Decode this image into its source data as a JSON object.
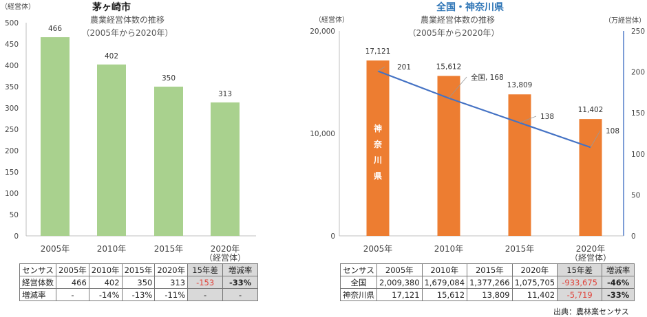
{
  "chart_data": [
    {
      "type": "bar",
      "title": "茅ヶ崎市",
      "subtitle": "農業経営体数の推移",
      "period": "（2005年から2020年）",
      "ylabel": "（経営体）",
      "categories": [
        "2005年",
        "2010年",
        "2015年",
        "2020年"
      ],
      "last_category_sub": "（経営体）",
      "values": [
        466,
        402,
        350,
        313
      ],
      "value_labels": [
        "466",
        "402",
        "350",
        "313"
      ],
      "ylim": [
        0,
        500
      ],
      "yticks": [
        0,
        50,
        100,
        150,
        200,
        250,
        300,
        350,
        400,
        450,
        500
      ],
      "bar_color": "#a9d18e",
      "grid": false
    },
    {
      "type": "bar+line",
      "title": "全国・神奈川県",
      "subtitle": "農業経営体数の推移",
      "period": "（2005年から2020年）",
      "ylabel_left": "（経営体）",
      "ylabel_right": "（万経営体）",
      "categories": [
        "2005年",
        "2010年",
        "2015年",
        "2020年"
      ],
      "last_category_sub": "（経営体）",
      "bar_series": {
        "name": "神奈川県",
        "label_chars": [
          "神",
          "奈",
          "川",
          "県"
        ],
        "values": [
          17121,
          15612,
          13809,
          11402
        ],
        "value_labels": [
          "17,121",
          "15,612",
          "13,809",
          "11,402"
        ],
        "color": "#ed7d31"
      },
      "line_series": {
        "values": [
          201,
          168,
          138,
          108
        ],
        "value_labels": [
          "201",
          "全国, 168",
          "138",
          "108"
        ],
        "color": "#4472c4"
      },
      "ylim_left": [
        0,
        20000
      ],
      "yticks_left": [
        0,
        10000,
        20000
      ],
      "ytick_labels_left": [
        "0",
        "10,000",
        "20,000"
      ],
      "ylim_right": [
        0,
        250
      ],
      "yticks_right": [
        0,
        50,
        100,
        150,
        200,
        250
      ],
      "grid": false
    }
  ],
  "table_left": {
    "header": [
      "センサス",
      "2005年",
      "2010年",
      "2015年",
      "2020年",
      "15年差",
      "増減率"
    ],
    "rows": [
      [
        "経営体数",
        "466",
        "402",
        "350",
        "313",
        "-153",
        "-33%"
      ],
      [
        "増減率",
        "-",
        "-14%",
        "-13%",
        "-11%",
        "-",
        "-"
      ]
    ]
  },
  "table_right": {
    "header": [
      "センサス",
      "2005年",
      "2010年",
      "2015年",
      "2020年",
      "15年差",
      "増減率"
    ],
    "rows": [
      [
        "全国",
        "2,009,380",
        "1,679,084",
        "1,377,266",
        "1,075,705",
        "-933,675",
        "-46%"
      ],
      [
        "神奈川県",
        "17,121",
        "15,612",
        "13,809",
        "11,402",
        "-5,719",
        "-33%"
      ]
    ]
  },
  "source": "出典：農林業センサス",
  "colors": {
    "left_title": "#1a1a1a",
    "right_title": "#2e75b6",
    "negative": "#e0433a"
  }
}
